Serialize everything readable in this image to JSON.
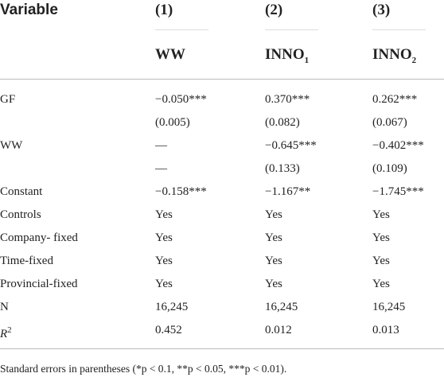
{
  "header": {
    "variable": "Variable",
    "columns": [
      "(1)",
      "(2)",
      "(3)"
    ],
    "dependent": [
      {
        "text": "WW"
      },
      {
        "text": "INNO",
        "sub": "1"
      },
      {
        "text": "INNO",
        "sub": "2"
      }
    ]
  },
  "table": {
    "rows": [
      [
        "GF",
        "−0.050***",
        "0.370***",
        "0.262***"
      ],
      [
        null,
        "(0.005)",
        "(0.082)",
        "(0.067)"
      ],
      [
        "WW",
        "—",
        "−0.645***",
        "−0.402***"
      ],
      [
        null,
        "—",
        "(0.133)",
        "(0.109)"
      ],
      [
        "Constant",
        "−0.158***",
        "−1.167**",
        "−1.745***"
      ],
      [
        "Controls",
        "Yes",
        "Yes",
        "Yes"
      ],
      [
        "Company- fixed",
        "Yes",
        "Yes",
        "Yes"
      ],
      [
        "Time-fixed",
        "Yes",
        "Yes",
        "Yes"
      ],
      [
        "Provincial-fixed",
        "Yes",
        "Yes",
        "Yes"
      ],
      [
        "N",
        "16,245",
        "16,245",
        "16,245"
      ],
      [
        {
          "text": "R",
          "sup": "2"
        },
        "0.452",
        "0.012",
        "0.013"
      ]
    ]
  },
  "footnote": "Standard errors in parentheses (*p < 0.1, **p < 0.05, ***p < 0.01)."
}
